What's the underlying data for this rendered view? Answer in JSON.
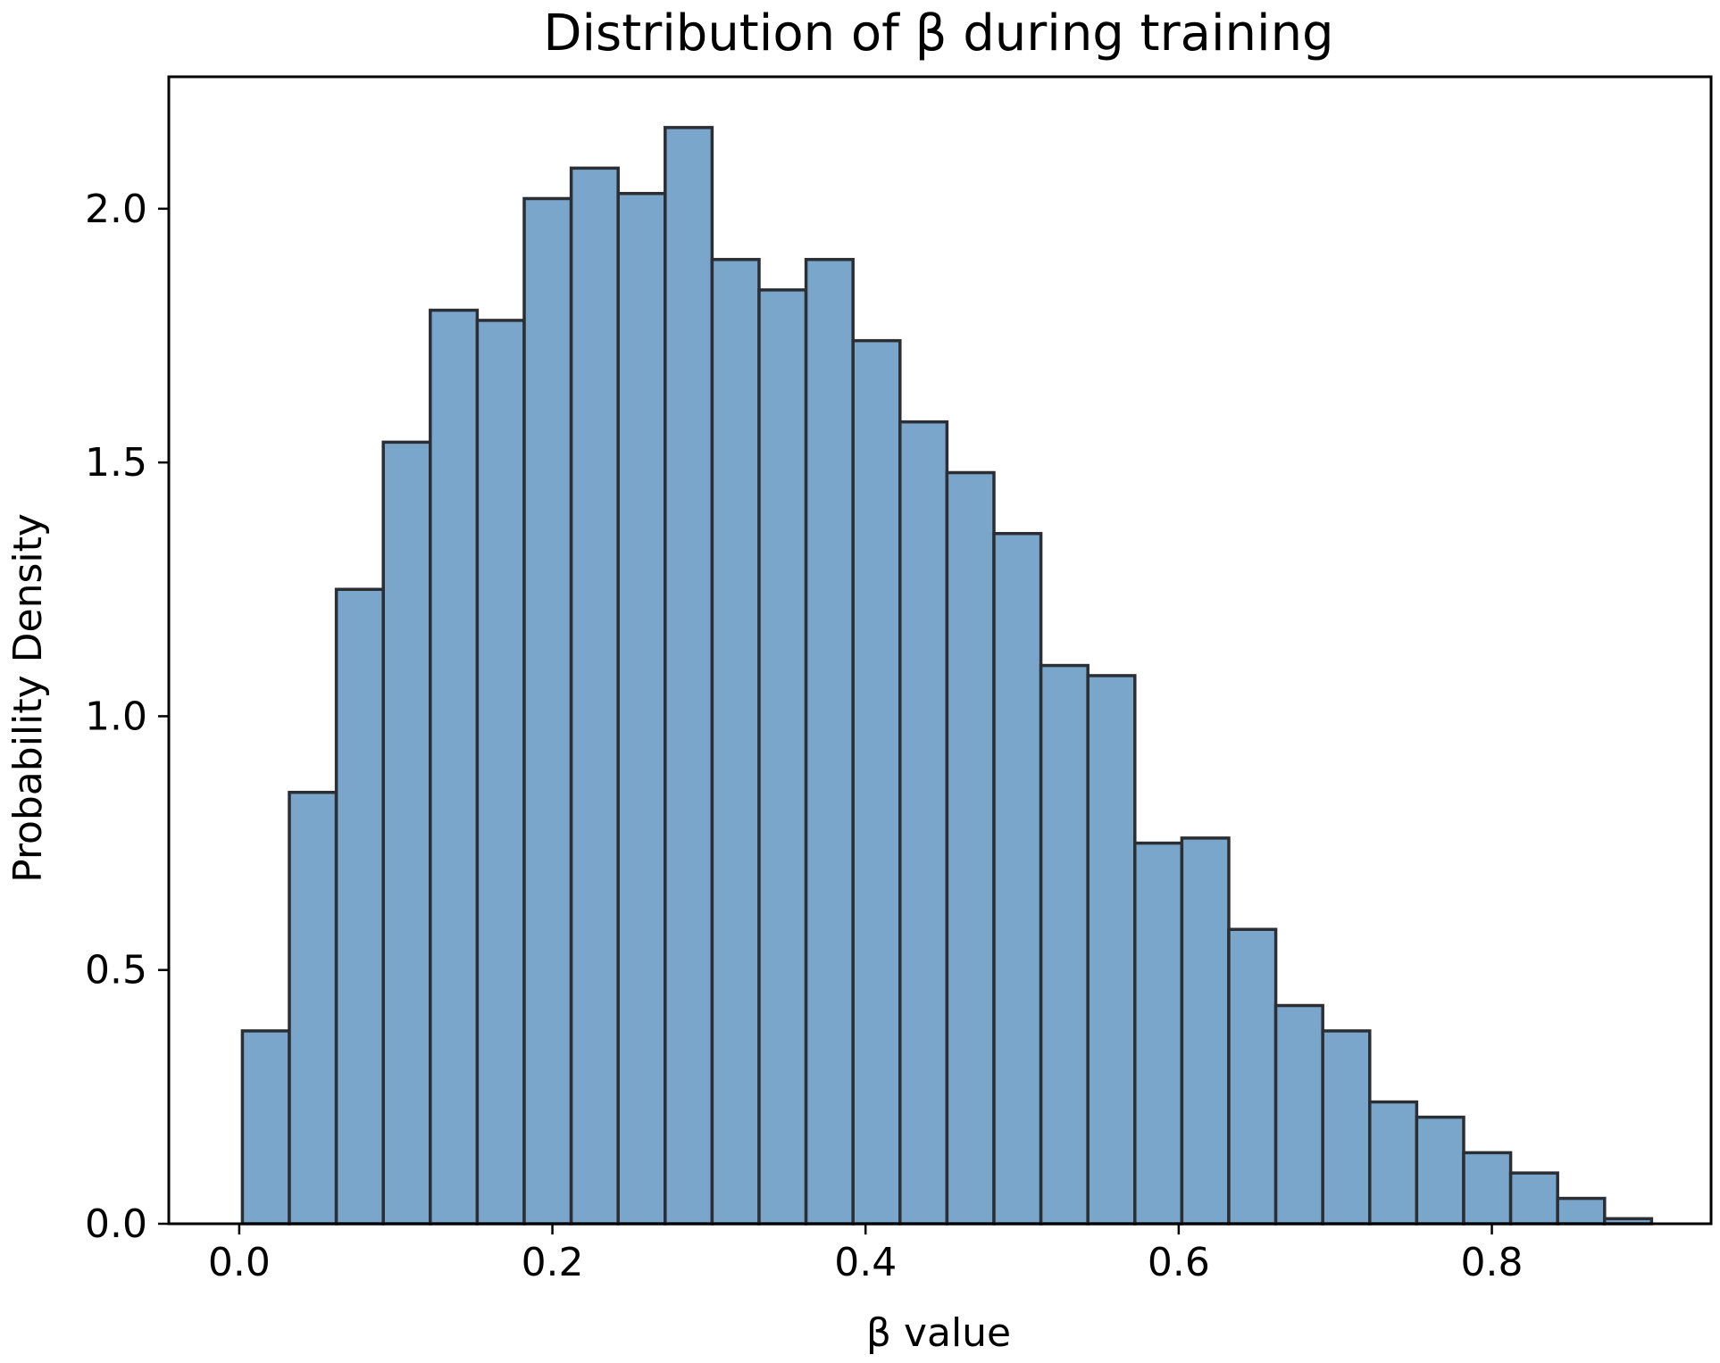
{
  "chart_data": {
    "type": "bar",
    "title": "Distribution of β during training",
    "xlabel": "β value",
    "ylabel": "Probability Density",
    "xlim": [
      -0.045,
      0.94
    ],
    "ylim": [
      0,
      2.26
    ],
    "xticks": [
      0.0,
      0.2,
      0.4,
      0.6,
      0.8
    ],
    "xtick_labels": [
      "0.0",
      "0.2",
      "0.4",
      "0.6",
      "0.8"
    ],
    "yticks": [
      0.0,
      0.5,
      1.0,
      1.5,
      2.0
    ],
    "ytick_labels": [
      "0.0",
      "0.5",
      "1.0",
      "1.5",
      "2.0"
    ],
    "grid": false,
    "bar_fill": "#7ba6cc",
    "bar_edge": "#2b2f33",
    "bins": [
      {
        "x0": 0.002,
        "x1": 0.032,
        "density": 0.38
      },
      {
        "x0": 0.032,
        "x1": 0.062,
        "density": 0.85
      },
      {
        "x0": 0.062,
        "x1": 0.092,
        "density": 1.25
      },
      {
        "x0": 0.092,
        "x1": 0.122,
        "density": 1.54
      },
      {
        "x0": 0.122,
        "x1": 0.152,
        "density": 1.8
      },
      {
        "x0": 0.152,
        "x1": 0.182,
        "density": 1.78
      },
      {
        "x0": 0.182,
        "x1": 0.212,
        "density": 2.02
      },
      {
        "x0": 0.212,
        "x1": 0.242,
        "density": 2.08
      },
      {
        "x0": 0.242,
        "x1": 0.272,
        "density": 2.03
      },
      {
        "x0": 0.272,
        "x1": 0.302,
        "density": 2.16
      },
      {
        "x0": 0.302,
        "x1": 0.332,
        "density": 1.9
      },
      {
        "x0": 0.332,
        "x1": 0.362,
        "density": 1.84
      },
      {
        "x0": 0.362,
        "x1": 0.392,
        "density": 1.9
      },
      {
        "x0": 0.392,
        "x1": 0.422,
        "density": 1.74
      },
      {
        "x0": 0.422,
        "x1": 0.452,
        "density": 1.58
      },
      {
        "x0": 0.452,
        "x1": 0.482,
        "density": 1.48
      },
      {
        "x0": 0.482,
        "x1": 0.512,
        "density": 1.36
      },
      {
        "x0": 0.512,
        "x1": 0.542,
        "density": 1.1
      },
      {
        "x0": 0.542,
        "x1": 0.572,
        "density": 1.08
      },
      {
        "x0": 0.572,
        "x1": 0.602,
        "density": 0.75
      },
      {
        "x0": 0.602,
        "x1": 0.632,
        "density": 0.76
      },
      {
        "x0": 0.632,
        "x1": 0.662,
        "density": 0.58
      },
      {
        "x0": 0.662,
        "x1": 0.692,
        "density": 0.43
      },
      {
        "x0": 0.692,
        "x1": 0.722,
        "density": 0.38
      },
      {
        "x0": 0.722,
        "x1": 0.752,
        "density": 0.24
      },
      {
        "x0": 0.752,
        "x1": 0.782,
        "density": 0.21
      },
      {
        "x0": 0.782,
        "x1": 0.812,
        "density": 0.14
      },
      {
        "x0": 0.812,
        "x1": 0.842,
        "density": 0.1
      },
      {
        "x0": 0.842,
        "x1": 0.872,
        "density": 0.05
      },
      {
        "x0": 0.872,
        "x1": 0.902,
        "density": 0.01
      }
    ]
  }
}
